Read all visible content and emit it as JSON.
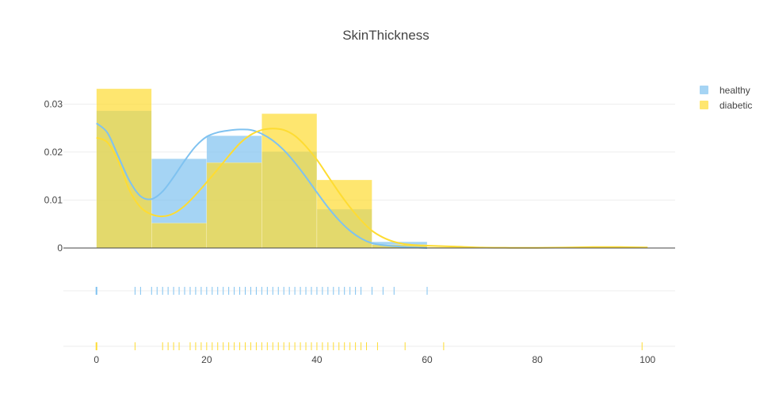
{
  "chart_data": {
    "type": "histogram",
    "title": "SkinThickness",
    "xlabel": "",
    "ylabel": "",
    "xlim": [
      -6,
      105
    ],
    "ylim": [
      0,
      0.036
    ],
    "x_ticks": [
      0,
      20,
      40,
      60,
      80,
      100
    ],
    "y_ticks": [
      0,
      0.01,
      0.02,
      0.03
    ],
    "y_tick_labels": [
      "0",
      "0.01",
      "0.02",
      "0.03"
    ],
    "grid": true,
    "legend_position": "top-right",
    "bin_edges": [
      0,
      10,
      20,
      30,
      40,
      50,
      60,
      70,
      80,
      90,
      100
    ],
    "series": [
      {
        "name": "healthy",
        "color": "#7fc2f0",
        "hist_values": [
          0.0286,
          0.0186,
          0.0234,
          0.0201,
          0.0081,
          0.0013,
          0,
          0,
          0,
          0
        ],
        "kde": {
          "x": [
            0,
            2,
            4,
            6,
            8,
            10,
            12,
            14,
            16,
            18,
            20,
            22,
            24,
            26,
            28,
            30,
            32,
            34,
            36,
            38,
            40,
            42,
            44,
            46,
            48,
            50,
            52,
            54,
            56,
            58,
            60
          ],
          "y": [
            0.026,
            0.024,
            0.019,
            0.014,
            0.0108,
            0.0102,
            0.0118,
            0.0148,
            0.0182,
            0.0212,
            0.0232,
            0.0241,
            0.0245,
            0.0247,
            0.0246,
            0.0238,
            0.0224,
            0.0204,
            0.0178,
            0.0148,
            0.0116,
            0.0085,
            0.0058,
            0.0036,
            0.002,
            0.001,
            0.0006,
            0.0004,
            0.0002,
            0.0001,
            0
          ]
        },
        "rug": [
          0,
          7,
          8,
          10,
          11,
          12,
          13,
          14,
          15,
          16,
          17,
          18,
          19,
          20,
          21,
          22,
          23,
          24,
          25,
          26,
          27,
          28,
          29,
          30,
          31,
          32,
          33,
          34,
          35,
          36,
          37,
          38,
          39,
          40,
          41,
          42,
          43,
          44,
          45,
          46,
          47,
          48,
          50,
          52,
          54,
          60
        ]
      },
      {
        "name": "diabetic",
        "color": "#fedc32",
        "hist_values": [
          0.0332,
          0.0052,
          0.0178,
          0.028,
          0.0142,
          0.0007,
          0.0002,
          0,
          0,
          0.0003
        ],
        "kde": {
          "x": [
            0,
            2,
            4,
            6,
            8,
            10,
            12,
            14,
            16,
            18,
            20,
            22,
            24,
            26,
            28,
            30,
            32,
            34,
            36,
            38,
            40,
            42,
            44,
            46,
            48,
            50,
            52,
            54,
            56,
            58,
            60,
            65,
            70,
            75,
            80,
            85,
            90,
            95,
            100
          ],
          "y": [
            0.023,
            0.022,
            0.018,
            0.012,
            0.0085,
            0.007,
            0.0066,
            0.0072,
            0.0088,
            0.0111,
            0.0137,
            0.0164,
            0.0192,
            0.0218,
            0.0236,
            0.0246,
            0.0249,
            0.0246,
            0.0234,
            0.0212,
            0.0184,
            0.015,
            0.0116,
            0.0085,
            0.0058,
            0.0036,
            0.0022,
            0.0013,
            0.0008,
            0.0006,
            0.0005,
            0.0003,
            0.0001,
            5e-05,
            5e-05,
            0.0001,
            0.0002,
            0.0002,
            0.0001
          ]
        },
        "rug": [
          0,
          7,
          12,
          13,
          14,
          15,
          17,
          18,
          19,
          20,
          21,
          22,
          23,
          24,
          25,
          26,
          27,
          28,
          29,
          30,
          31,
          32,
          33,
          34,
          35,
          36,
          37,
          38,
          39,
          40,
          41,
          42,
          43,
          44,
          45,
          46,
          47,
          48,
          49,
          51,
          56,
          63,
          99
        ]
      }
    ]
  }
}
